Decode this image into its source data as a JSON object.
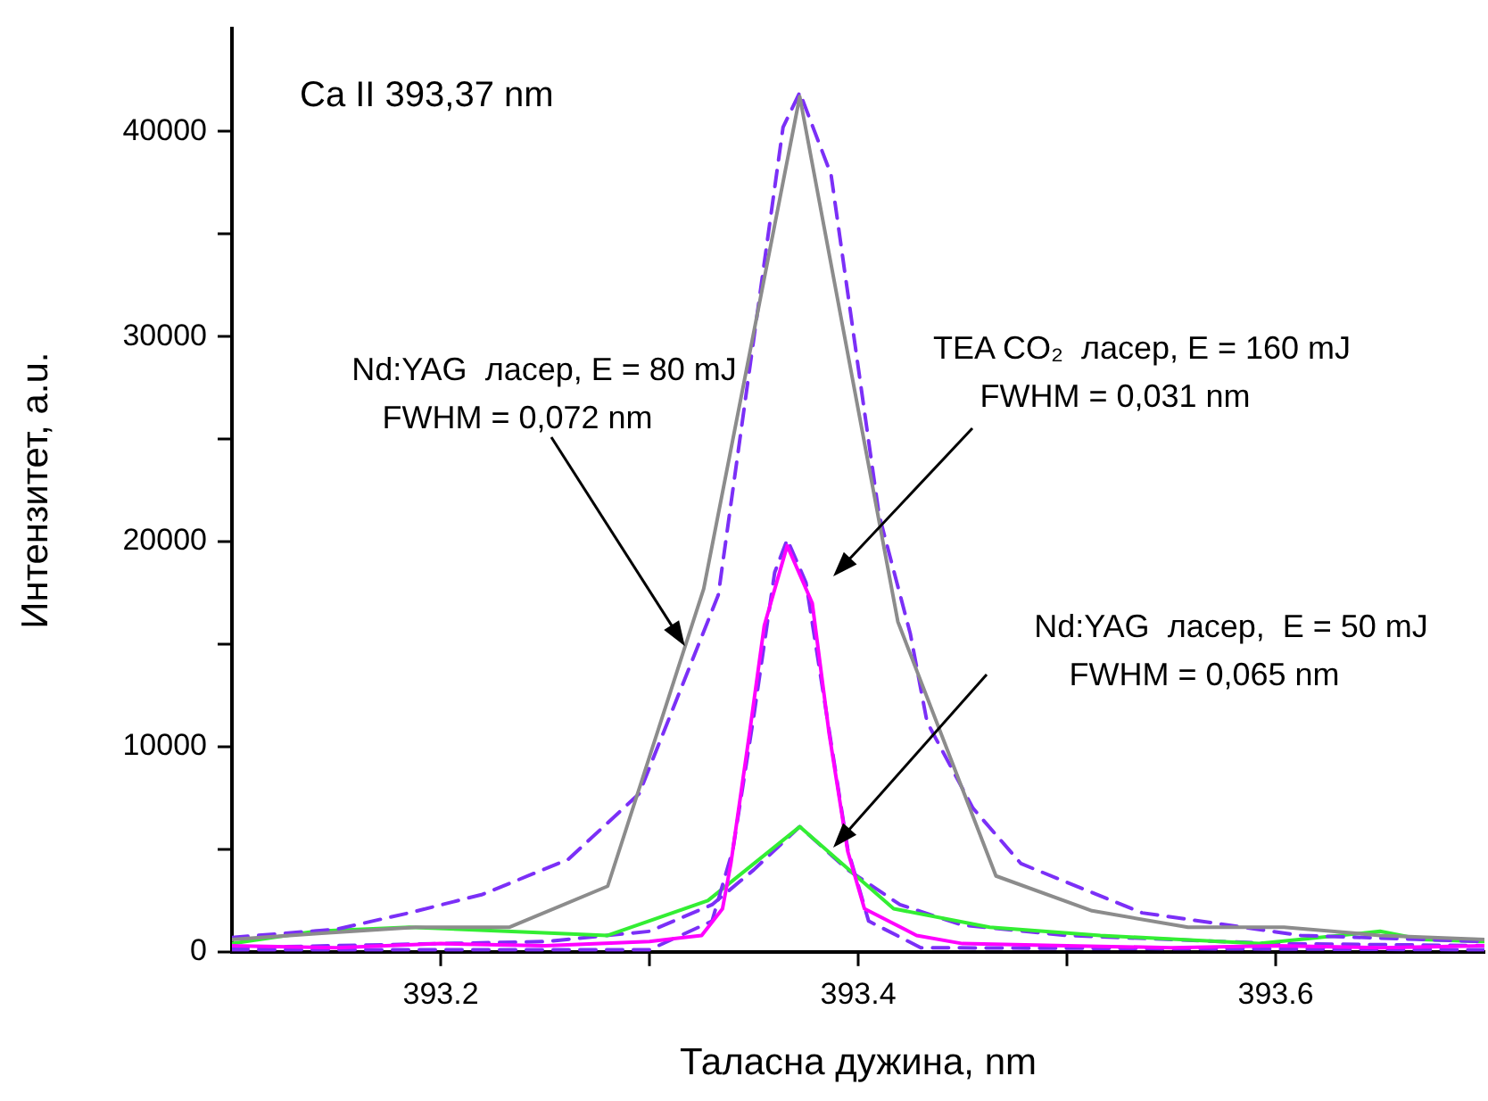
{
  "chart_data": {
    "type": "line",
    "title": "Ca II 393,37 nm",
    "xlabel": "Таласна дужина, nm",
    "ylabel": "Интензитет, a.u.",
    "xlim": [
      393.1,
      393.7
    ],
    "xticks": [
      393.2,
      {
        "value": 393.3,
        "label": null
      },
      393.4,
      {
        "value": 393.5,
        "label": null
      },
      393.6
    ],
    "ylim": [
      0,
      45000
    ],
    "yticks": [
      0,
      {
        "value": 5000,
        "label": null
      },
      10000,
      {
        "value": 15000,
        "label": null
      },
      20000,
      {
        "value": 25000,
        "label": null
      },
      30000,
      {
        "value": 35000,
        "label": null
      },
      40000
    ],
    "grid": false,
    "legend": false,
    "marker": "none",
    "series": [
      {
        "color": "#8c8c8c",
        "line_style": "solid",
        "x": [
          393.1,
          393.143,
          393.188,
          393.233,
          393.28,
          393.326,
          393.372,
          393.419,
          393.466,
          393.512,
          393.558,
          393.604,
          393.65,
          393.7
        ],
        "values": [
          600,
          900,
          1200,
          1200,
          3200,
          17700,
          41700,
          16100,
          3700,
          2000,
          1200,
          1200,
          800,
          600
        ]
      },
      {
        "color": "#7b2ff7",
        "line_style": "dashed",
        "x": [
          393.1,
          393.15,
          393.185,
          393.22,
          393.261,
          393.295,
          393.333,
          393.364,
          393.372,
          393.387,
          393.41,
          393.425,
          393.433,
          393.455,
          393.478,
          393.536,
          393.612,
          393.7
        ],
        "values": [
          700,
          1100,
          1900,
          2800,
          4500,
          7700,
          17400,
          40200,
          41900,
          37900,
          21300,
          15500,
          11200,
          7000,
          4300,
          1900,
          800,
          500
        ]
      },
      {
        "color": "#ff00ff",
        "line_style": "solid",
        "x": [
          393.1,
          393.15,
          393.2,
          393.25,
          393.3,
          393.325,
          393.335,
          393.339,
          393.348,
          393.355,
          393.366,
          393.378,
          393.386,
          393.395,
          393.403,
          393.428,
          393.45,
          393.5,
          393.55,
          393.6,
          393.65,
          393.7
        ],
        "values": [
          300,
          200,
          400,
          300,
          500,
          800,
          2100,
          4300,
          10700,
          15900,
          19800,
          17000,
          10700,
          4900,
          2100,
          800,
          400,
          300,
          200,
          300,
          200,
          300
        ]
      },
      {
        "color": "#7b2ff7",
        "line_style": "dashed",
        "x": [
          393.1,
          393.3,
          393.33,
          393.34,
          393.35,
          393.36,
          393.366,
          393.375,
          393.385,
          393.395,
          393.405,
          393.43,
          393.7
        ],
        "values": [
          100,
          100,
          1500,
          5000,
          11500,
          18500,
          20100,
          18000,
          11500,
          5000,
          1500,
          200,
          100
        ]
      },
      {
        "color": "#33ee33",
        "line_style": "solid",
        "x": [
          393.1,
          393.14,
          393.185,
          393.28,
          393.328,
          393.372,
          393.417,
          393.463,
          393.516,
          393.592,
          393.65,
          393.67,
          393.7
        ],
        "values": [
          400,
          1000,
          1200,
          800,
          2500,
          6100,
          2100,
          1200,
          800,
          400,
          1000,
          600,
          500
        ]
      },
      {
        "color": "#7b2ff7",
        "line_style": "dashed",
        "x": [
          393.1,
          393.25,
          393.3,
          393.33,
          393.35,
          393.372,
          393.395,
          393.42,
          393.45,
          393.5,
          393.6,
          393.7
        ],
        "values": [
          200,
          500,
          1000,
          2300,
          4000,
          6100,
          4000,
          2300,
          1300,
          800,
          400,
          300
        ]
      }
    ],
    "annotations": [
      {
        "text": "Nd:YAG  ласер, E = 80 mJ\nFWHM = 0,072 nm",
        "x": 393.317,
        "y": 14900
      },
      "TEA CO₂  ласер, E = 160 mJ\nFWHM = 0,031 nm",
      "Nd:YAG  ласер,  E = 50 mJ\nFWHM = 0,065 nm"
    ]
  }
}
